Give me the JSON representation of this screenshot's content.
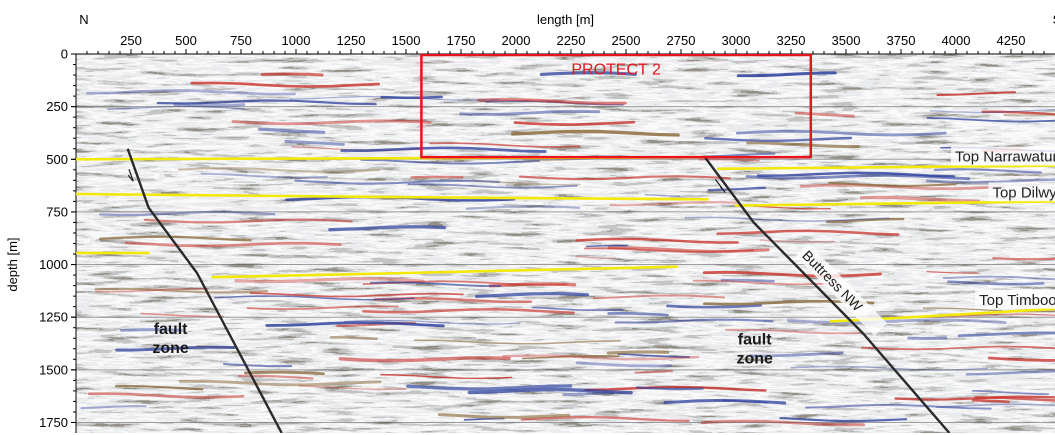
{
  "section": {
    "end_left": "N",
    "end_right": "S",
    "xlabel": "length [m]",
    "ylabel": "depth [m]",
    "xlim": [
      0,
      4450
    ],
    "ylim": [
      1800,
      0
    ],
    "x_ticks": [
      250,
      500,
      750,
      1000,
      1250,
      1500,
      1750,
      2000,
      2250,
      2500,
      2750,
      3000,
      3250,
      3500,
      3750,
      4000,
      4250
    ],
    "y_ticks": [
      0,
      250,
      500,
      750,
      1000,
      1250,
      1500,
      1750
    ],
    "gridlines": "horizontal"
  },
  "colors": {
    "horizon": "#f2e90a",
    "fault": "#2a2a2a",
    "box": "#e8141c",
    "peak": "#c8312a",
    "trough": "#2c3f9c",
    "fill": "#8a6a3a"
  },
  "box": {
    "label": "PROTECT 2",
    "x_range": [
      1570,
      3340
    ],
    "depth_range": [
      0,
      490
    ]
  },
  "horizons": [
    {
      "label": "Top Narrawaturk",
      "segments": [
        [
          [
            0,
            500
          ],
          [
            1500,
            495
          ],
          [
            2870,
            490
          ]
        ],
        [
          [
            2920,
            545
          ],
          [
            4450,
            530
          ]
        ]
      ]
    },
    {
      "label": "Top Dilwyn",
      "segments": [
        [
          [
            0,
            665
          ],
          [
            500,
            670
          ],
          [
            1500,
            680
          ],
          [
            2870,
            690
          ]
        ],
        [
          [
            3000,
            720
          ],
          [
            4450,
            700
          ]
        ]
      ]
    },
    {
      "label": "Top Timboon",
      "segments": [
        [
          [
            0,
            945
          ],
          [
            330,
            945
          ]
        ],
        [
          [
            620,
            1060
          ],
          [
            1500,
            1040
          ],
          [
            2730,
            1010
          ]
        ],
        [
          [
            3430,
            1270
          ],
          [
            3800,
            1250
          ],
          [
            4450,
            1210
          ]
        ]
      ]
    }
  ],
  "faults": [
    {
      "label": "",
      "points": [
        [
          235,
          450
        ],
        [
          330,
          730
        ],
        [
          550,
          1040
        ],
        [
          935,
          1800
        ]
      ]
    },
    {
      "label": "Buttress NW",
      "points": [
        [
          2855,
          485
        ],
        [
          3080,
          800
        ],
        [
          3580,
          1330
        ],
        [
          3970,
          1800
        ]
      ]
    }
  ],
  "zones": [
    {
      "line1": "fault",
      "line2": "zone",
      "at": [
        430,
        1330
      ]
    },
    {
      "line1": "fault",
      "line2": "zone",
      "at": [
        3085,
        1380
      ]
    }
  ]
}
